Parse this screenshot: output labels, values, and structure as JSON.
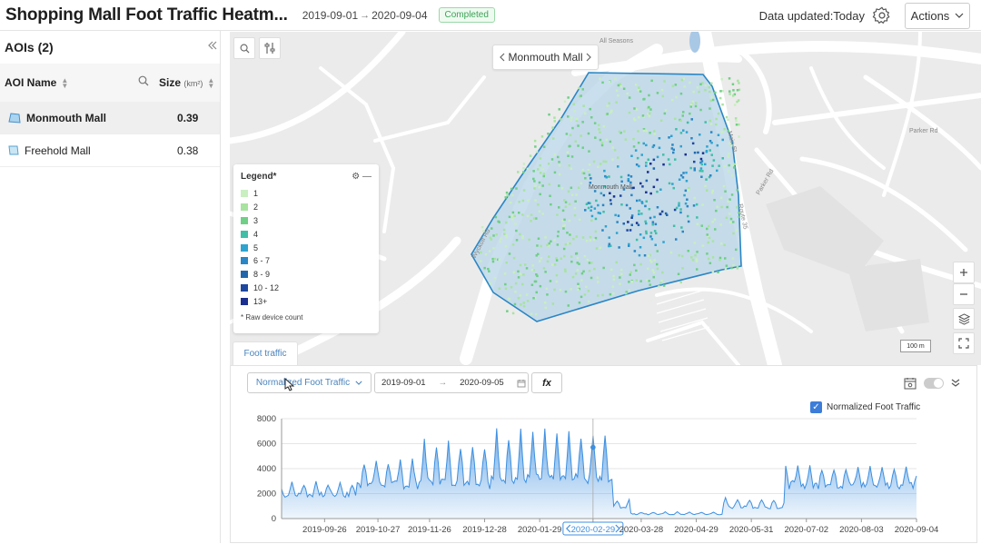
{
  "header": {
    "title": "Shopping Mall Foot Traffic Heatm...",
    "date_start": "2019-09-01",
    "date_end": "2020-09-04",
    "date_arrow": "→",
    "status": "Completed",
    "data_updated": "Data updated:Today",
    "actions_label": "Actions"
  },
  "sidebar": {
    "title": "AOIs (2)",
    "collapse_icon": "double-chevron-left-icon",
    "columns": {
      "name": "AOI Name",
      "size": "Size",
      "size_unit": "(km²)"
    },
    "rows": [
      {
        "name": "Monmouth Mall",
        "size": "0.39",
        "selected": true
      },
      {
        "name": "Freehold Mall",
        "size": "0.38",
        "selected": false
      }
    ]
  },
  "map": {
    "aoi_selector": "Monmouth Mall",
    "legend": {
      "title": "Legend*",
      "items": [
        {
          "label": "1",
          "color": "#c9eec0"
        },
        {
          "label": "2",
          "color": "#a8e3a0"
        },
        {
          "label": "3",
          "color": "#6fcf86"
        },
        {
          "label": "4",
          "color": "#3fbfa8"
        },
        {
          "label": "5",
          "color": "#2fa3cf"
        },
        {
          "label": "6 - 7",
          "color": "#2a86c4"
        },
        {
          "label": "8 - 9",
          "color": "#2166ad"
        },
        {
          "label": "10 - 12",
          "color": "#1e47a0"
        },
        {
          "label": "13+",
          "color": "#1a2f8f"
        }
      ],
      "note": "* Raw device count"
    },
    "scale_label": "100 m",
    "labels": {
      "all_seasons": "All Seasons",
      "parker_rd": "Parker Rd",
      "parker_rd2": "Parker Rd",
      "main_st": "Main St",
      "wyckoff": "Wyckoff Rd",
      "route35": "Route 35",
      "mall": "Monmouth Mall"
    }
  },
  "panel": {
    "tab": "Foot traffic",
    "metric_select": "Normalized Foot Traffic",
    "range_start": "2019-09-01",
    "range_end": "2020-09-05",
    "fx": "fx",
    "legend_label": "Normalized Foot Traffic",
    "highlight_date": "2020-02-29"
  },
  "chart_data": {
    "type": "area",
    "series": [
      {
        "name": "Normalized Foot Traffic",
        "color": "#3d8fe0"
      }
    ],
    "ylim": [
      0,
      8000
    ],
    "y_ticks": [
      "0",
      "2000",
      "4000",
      "6000",
      "8000"
    ],
    "x_tick_labels": [
      "2019-09-26",
      "2019-10-27",
      "2019-11-26",
      "2019-12-28",
      "2020-01-29",
      "2020-02-29",
      "2020-03-28",
      "2020-04-29",
      "2020-05-31",
      "2020-07-02",
      "2020-08-03",
      "2020-09-04"
    ],
    "x_tick_dates": [
      "2019-09-26",
      "2019-10-27",
      "2019-11-26",
      "2019-12-28",
      "2020-01-29",
      "2020-02-29",
      "2020-03-28",
      "2020-04-29",
      "2020-05-31",
      "2020-07-02",
      "2020-08-03",
      "2020-09-04"
    ],
    "x_range": [
      "2019-09-01",
      "2020-09-04"
    ],
    "monthly_pattern": [
      {
        "from": "2019-09-01",
        "to": "2019-10-15",
        "base": 1900,
        "peak": 3000
      },
      {
        "from": "2019-10-15",
        "to": "2019-11-20",
        "base": 2700,
        "peak": 5000
      },
      {
        "from": "2019-11-20",
        "to": "2019-12-31",
        "base": 3000,
        "peak": 6400
      },
      {
        "from": "2020-01-01",
        "to": "2020-03-12",
        "base": 3200,
        "peak": 7300
      },
      {
        "from": "2020-03-12",
        "to": "2020-03-22",
        "base": 900,
        "peak": 1600
      },
      {
        "from": "2020-03-22",
        "to": "2020-05-15",
        "base": 350,
        "peak": 550
      },
      {
        "from": "2020-05-15",
        "to": "2020-06-20",
        "base": 900,
        "peak": 1700
      },
      {
        "from": "2020-06-20",
        "to": "2020-09-04",
        "base": 2700,
        "peak": 4300
      }
    ],
    "highlight_value": 5700,
    "grid": true
  }
}
